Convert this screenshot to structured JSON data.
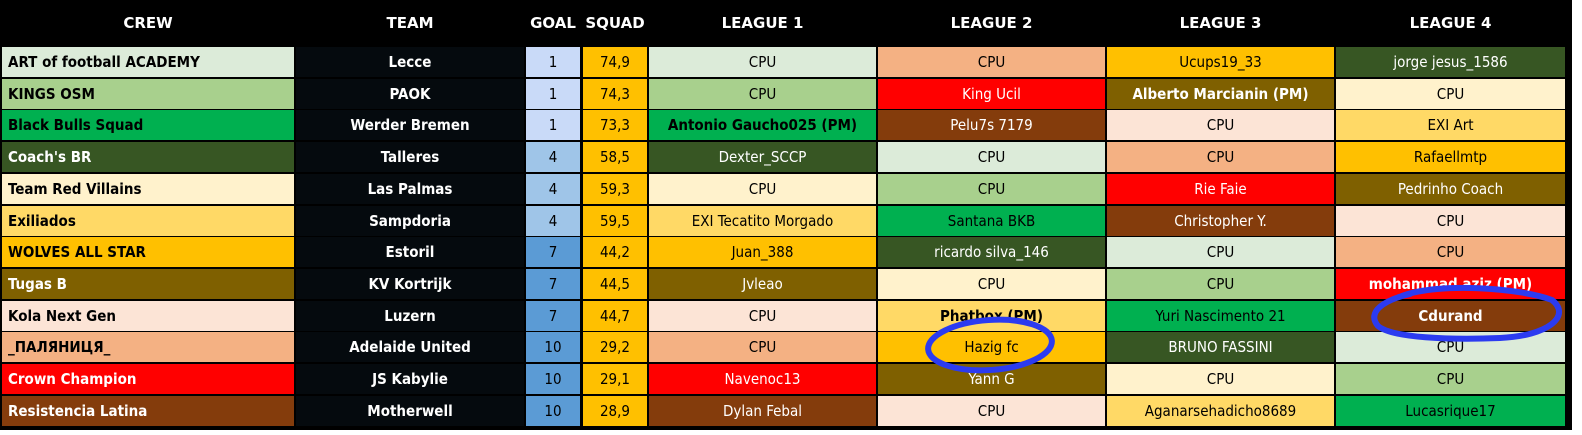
{
  "headers": {
    "crew": "CREW",
    "team": "TEAM",
    "goal": "GOAL",
    "squad": "SQUAD",
    "league1": "LEAGUE 1",
    "league2": "LEAGUE 2",
    "league3": "LEAGUE 3",
    "league4": "LEAGUE 4"
  },
  "colors": {
    "light_mint": "#dcebd9",
    "light_green": "#a8d08d",
    "green": "#00b050",
    "dark_green": "#375623",
    "cream": "#fff2cc",
    "yellow": "#ffd966",
    "amber": "#ffc000",
    "olive": "#7f6000",
    "peach": "#fce4d6",
    "salmon": "#f4b183",
    "red": "#ff0000",
    "brown": "#843c0c",
    "goal_light": "#c9daf8",
    "goal_mid": "#9fc5e8",
    "goal_dark": "#5b9bd5",
    "squad": "#ffc000",
    "annotation_circle": "#2c3bf0"
  },
  "rows": [
    {
      "crew": "ART of football ACADEMY",
      "crew_color": "light_mint",
      "team": "Lecce",
      "goal": "1",
      "squad": "74,9",
      "l1": {
        "text": "CPU",
        "color": "light_mint"
      },
      "l2": {
        "text": "CPU",
        "color": "salmon"
      },
      "l3": {
        "text": "Ucups19_33",
        "color": "amber"
      },
      "l4": {
        "text": "jorge jesus_1586",
        "color": "dark_green"
      }
    },
    {
      "crew": "KINGS OSM",
      "crew_color": "light_green",
      "team": "PAOK",
      "goal": "1",
      "squad": "74,3",
      "l1": {
        "text": "CPU",
        "color": "light_green"
      },
      "l2": {
        "text": "King Ucil",
        "color": "red"
      },
      "l3": {
        "text": "Alberto Marcianin (PM)",
        "color": "olive",
        "bold": true
      },
      "l4": {
        "text": "CPU",
        "color": "cream"
      }
    },
    {
      "crew": "Black Bulls Squad",
      "crew_color": "green",
      "team": "Werder Bremen",
      "goal": "1",
      "squad": "73,3",
      "l1": {
        "text": "Antonio Gaucho025 (PM)",
        "color": "green",
        "bold": true
      },
      "l2": {
        "text": "Pelu7s 7179",
        "color": "brown"
      },
      "l3": {
        "text": "CPU",
        "color": "peach"
      },
      "l4": {
        "text": "EXI Art",
        "color": "yellow"
      }
    },
    {
      "crew": "Coach's BR",
      "crew_color": "dark_green",
      "team": "Talleres",
      "goal": "4",
      "squad": "58,5",
      "l1": {
        "text": "Dexter_SCCP",
        "color": "dark_green"
      },
      "l2": {
        "text": "CPU",
        "color": "light_mint"
      },
      "l3": {
        "text": "CPU",
        "color": "salmon"
      },
      "l4": {
        "text": "Rafaellmtp",
        "color": "amber"
      }
    },
    {
      "crew": "Team Red Villains",
      "crew_color": "cream",
      "team": "Las Palmas",
      "goal": "4",
      "squad": "59,3",
      "l1": {
        "text": "CPU",
        "color": "cream"
      },
      "l2": {
        "text": "CPU",
        "color": "light_green"
      },
      "l3": {
        "text": "Rie Faie",
        "color": "red"
      },
      "l4": {
        "text": "Pedrinho Coach",
        "color": "olive"
      }
    },
    {
      "crew": "Exiliados",
      "crew_color": "yellow",
      "team": "Sampdoria",
      "goal": "4",
      "squad": "59,5",
      "l1": {
        "text": "EXI Tecatito Morgado",
        "color": "yellow"
      },
      "l2": {
        "text": "Santana BKB",
        "color": "green"
      },
      "l3": {
        "text": "Christopher Y.",
        "color": "brown"
      },
      "l4": {
        "text": "CPU",
        "color": "peach"
      }
    },
    {
      "crew": "WOLVES ALL STAR",
      "crew_color": "amber",
      "team": "Estoril",
      "goal": "7",
      "squad": "44,2",
      "l1": {
        "text": "Juan_388",
        "color": "amber"
      },
      "l2": {
        "text": "ricardo silva_146",
        "color": "dark_green"
      },
      "l3": {
        "text": "CPU",
        "color": "light_mint"
      },
      "l4": {
        "text": "CPU",
        "color": "salmon"
      }
    },
    {
      "crew": "Tugas B",
      "crew_color": "olive",
      "team": "KV Kortrijk",
      "goal": "7",
      "squad": "44,5",
      "l1": {
        "text": "Jvleao",
        "color": "olive"
      },
      "l2": {
        "text": "CPU",
        "color": "cream"
      },
      "l3": {
        "text": "CPU",
        "color": "light_green"
      },
      "l4": {
        "text": "mohammad aziz (PM)",
        "color": "red",
        "bold": true
      }
    },
    {
      "crew": "Kola Next Gen",
      "crew_color": "peach",
      "team": "Luzern",
      "goal": "7",
      "squad": "44,7",
      "l1": {
        "text": "CPU",
        "color": "peach"
      },
      "l2": {
        "text": "Phatbox (PM)",
        "color": "yellow",
        "bold": true
      },
      "l3": {
        "text": "Yuri Nascimento 21",
        "color": "green"
      },
      "l4": {
        "text": "Cdurand",
        "color": "brown",
        "bold": true
      }
    },
    {
      "crew": "_ПАЛЯНИЦЯ_",
      "crew_color": "salmon",
      "team": "Adelaide United",
      "goal": "10",
      "squad": "29,2",
      "l1": {
        "text": "CPU",
        "color": "salmon"
      },
      "l2": {
        "text": "Hazig fc",
        "color": "amber"
      },
      "l3": {
        "text": "BRUNO FASSINI",
        "color": "dark_green"
      },
      "l4": {
        "text": "CPU",
        "color": "light_mint"
      }
    },
    {
      "crew": "Crown Champion",
      "crew_color": "red",
      "team": "JS Kabylie",
      "goal": "10",
      "squad": "29,1",
      "l1": {
        "text": "Navenoc13",
        "color": "red"
      },
      "l2": {
        "text": "Yann G",
        "color": "olive"
      },
      "l3": {
        "text": "CPU",
        "color": "cream"
      },
      "l4": {
        "text": "CPU",
        "color": "light_green"
      }
    },
    {
      "crew": "Resistencia Latina",
      "crew_color": "brown",
      "team": "Motherwell",
      "goal": "10",
      "squad": "28,9",
      "l1": {
        "text": "Dylan Febal",
        "color": "brown"
      },
      "l2": {
        "text": "CPU",
        "color": "peach"
      },
      "l3": {
        "text": "Aganarsehadicho8689",
        "color": "yellow"
      },
      "l4": {
        "text": "Lucasrique17",
        "color": "green"
      }
    }
  ]
}
